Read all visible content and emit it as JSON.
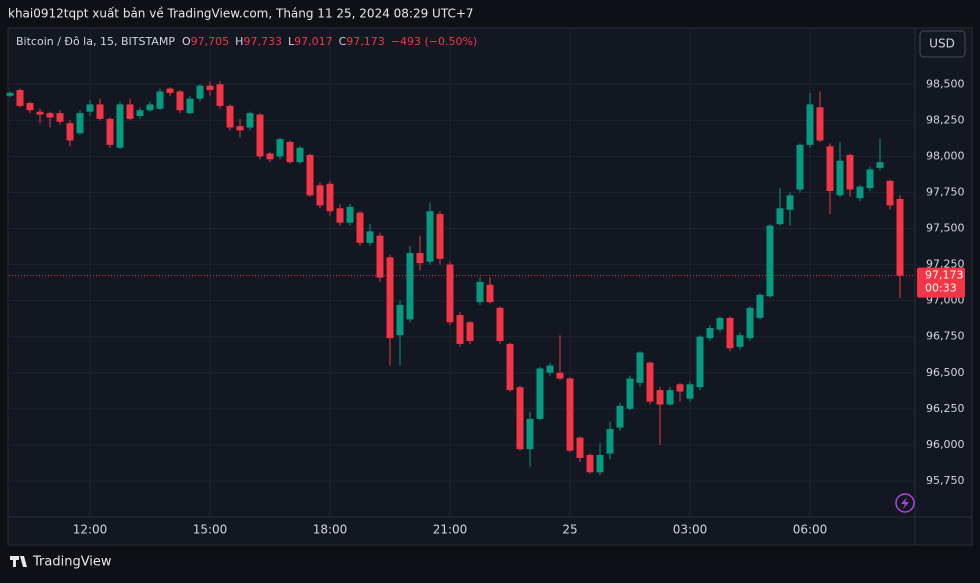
{
  "caption": "khai0912tqpt xuất bản về TradingView.com, Tháng 11 25, 2024 08:29 UTC+7",
  "legend": {
    "symbol": "Bitcoin / Đô la, 15, BITSTAMP",
    "o_label": "O",
    "o": "97,705",
    "h_label": "H",
    "h": "97,733",
    "l_label": "L",
    "l": "97,017",
    "c_label": "C",
    "c": "97,173",
    "change": "−493 (−0.50%)"
  },
  "currency_button": "USD",
  "brand": "TradingView",
  "chart_data": {
    "type": "candlestick",
    "grid": true,
    "up_color": "#089981",
    "down_color": "#f23645",
    "ylim": [
      95500,
      98890
    ],
    "yticks": [
      {
        "value": 95750,
        "label": "95,750"
      },
      {
        "value": 96000,
        "label": "96,000"
      },
      {
        "value": 96250,
        "label": "96,250"
      },
      {
        "value": 96500,
        "label": "96,500"
      },
      {
        "value": 96750,
        "label": "96,750"
      },
      {
        "value": 97000,
        "label": "97,000"
      },
      {
        "value": 97250,
        "label": "97,250"
      },
      {
        "value": 97500,
        "label": "97,500"
      },
      {
        "value": 97750,
        "label": "97,750"
      },
      {
        "value": 98000,
        "label": "98,000"
      },
      {
        "value": 98250,
        "label": "98,250"
      },
      {
        "value": 98500,
        "label": "98,500"
      }
    ],
    "last_price": {
      "value": 97173,
      "label": "97,173",
      "countdown": "00:33"
    },
    "categories": [
      null,
      null,
      null,
      null,
      null,
      null,
      null,
      null,
      "12:00",
      null,
      null,
      null,
      null,
      null,
      null,
      null,
      null,
      null,
      null,
      null,
      "15:00",
      null,
      null,
      null,
      null,
      null,
      null,
      null,
      null,
      null,
      null,
      null,
      "18:00",
      null,
      null,
      null,
      null,
      null,
      null,
      null,
      null,
      null,
      null,
      null,
      "21:00",
      null,
      null,
      null,
      null,
      null,
      null,
      null,
      null,
      null,
      null,
      null,
      "25",
      null,
      null,
      null,
      null,
      null,
      null,
      null,
      null,
      null,
      null,
      null,
      "03:00",
      null,
      null,
      null,
      null,
      null,
      null,
      null,
      null,
      null,
      null,
      null,
      "06:00",
      null,
      null,
      null,
      null,
      null,
      null,
      null,
      null,
      null
    ],
    "open": [
      98420,
      98460,
      98370,
      98310,
      98300,
      98300,
      98230,
      98160,
      98310,
      98360,
      98260,
      98060,
      98360,
      98280,
      98320,
      98330,
      98470,
      98450,
      98300,
      98400,
      98490,
      98500,
      98350,
      98210,
      98200,
      98290,
      98020,
      98000,
      98100,
      97960,
      98010,
      97800,
      97810,
      97640,
      97540,
      97610,
      97400,
      97450,
      97300,
      96760,
      96870,
      97330,
      97270,
      97600,
      97250,
      96900,
      96850,
      96990,
      97110,
      96950,
      96700,
      96400,
      95970,
      96180,
      96500,
      96500,
      96460,
      96050,
      95930,
      95810,
      95940,
      96120,
      96250,
      96430,
      96570,
      96380,
      96280,
      96420,
      96320,
      96400,
      96740,
      96800,
      96880,
      96680,
      96740,
      96880,
      97030,
      97530,
      97630,
      97770,
      98080,
      98340,
      98070,
      97730,
      98010,
      97710,
      97780,
      97920,
      97830,
      97705
    ],
    "high": [
      98450,
      98470,
      98380,
      98330,
      98310,
      98320,
      98250,
      98320,
      98390,
      98400,
      98270,
      98380,
      98400,
      98340,
      98380,
      98470,
      98480,
      98460,
      98420,
      98500,
      98520,
      98520,
      98360,
      98260,
      98310,
      98300,
      98030,
      98130,
      98110,
      98070,
      98020,
      97820,
      97830,
      97670,
      97670,
      97620,
      97530,
      97470,
      97320,
      97000,
      97380,
      97450,
      97680,
      97620,
      97270,
      96920,
      96860,
      97160,
      97160,
      96960,
      96710,
      96410,
      96230,
      96540,
      96570,
      96760,
      96470,
      96060,
      95940,
      96010,
      96160,
      96290,
      96480,
      96650,
      96580,
      96400,
      96400,
      96430,
      96440,
      96760,
      96830,
      96890,
      96890,
      96780,
      96960,
      97050,
      97530,
      97780,
      97750,
      98090,
      98440,
      98450,
      98090,
      98100,
      98020,
      97800,
      97930,
      98120,
      97840,
      97733
    ],
    "low": [
      98410,
      98340,
      98300,
      98230,
      98200,
      98220,
      98070,
      98150,
      98280,
      98250,
      98060,
      98050,
      98250,
      98260,
      98310,
      98320,
      98420,
      98300,
      98290,
      98380,
      98420,
      98330,
      98180,
      98130,
      98180,
      97980,
      97960,
      97980,
      97950,
      97950,
      97720,
      97640,
      97590,
      97520,
      97520,
      97380,
      97380,
      97130,
      96550,
      96550,
      96850,
      97210,
      97250,
      97250,
      96830,
      96680,
      96700,
      96970,
      96980,
      96700,
      96370,
      95960,
      95850,
      96170,
      96480,
      96450,
      95950,
      95880,
      95800,
      95790,
      95900,
      96100,
      96240,
      96400,
      96280,
      96000,
      96270,
      96300,
      96300,
      96380,
      96720,
      96780,
      96650,
      96660,
      96720,
      96870,
      97020,
      97520,
      97520,
      97750,
      98060,
      98100,
      97600,
      97720,
      97720,
      97690,
      97760,
      97900,
      97630,
      97017
    ],
    "close": [
      98440,
      98350,
      98320,
      98290,
      98270,
      98240,
      98110,
      98300,
      98360,
      98260,
      98080,
      98360,
      98260,
      98320,
      98360,
      98450,
      98440,
      98320,
      98400,
      98490,
      98460,
      98350,
      98200,
      98180,
      98300,
      98000,
      97980,
      98120,
      97960,
      98060,
      97730,
      97660,
      97620,
      97540,
      97650,
      97400,
      97480,
      97160,
      96740,
      96970,
      97330,
      97260,
      97620,
      97290,
      96850,
      96700,
      96720,
      97130,
      96990,
      96720,
      96380,
      95970,
      96180,
      96530,
      96550,
      96460,
      95960,
      95910,
      95810,
      95930,
      96110,
      96270,
      96460,
      96640,
      96300,
      96280,
      96380,
      96370,
      96420,
      96750,
      96810,
      96880,
      96670,
      96760,
      96950,
      97040,
      97520,
      97640,
      97730,
      98080,
      98360,
      98110,
      97760,
      97970,
      97770,
      97790,
      97910,
      97960,
      97660,
      97173
    ]
  }
}
